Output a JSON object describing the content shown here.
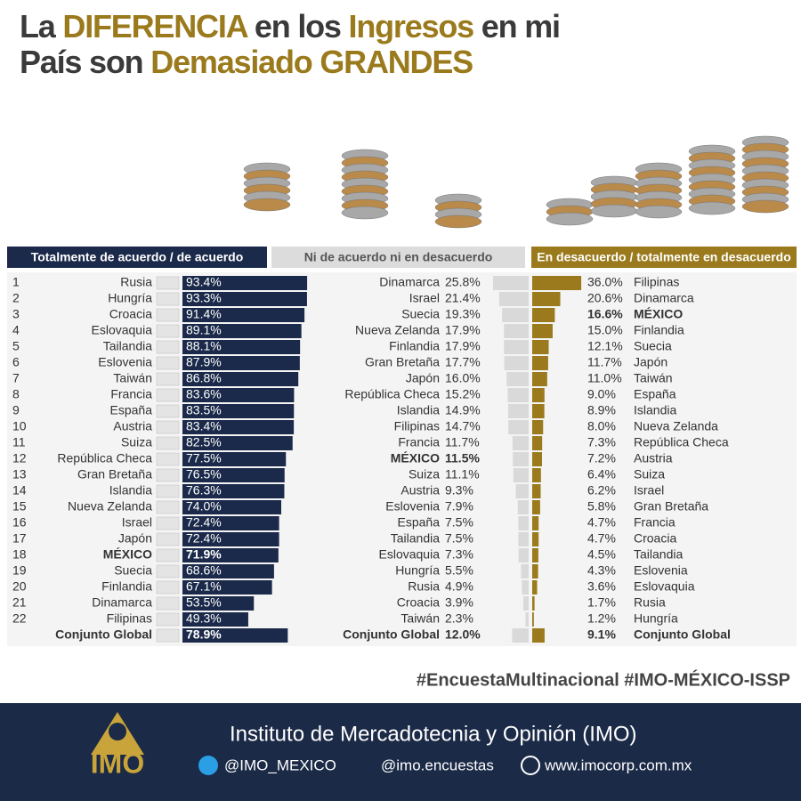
{
  "title": {
    "lines": [
      [
        {
          "text": "La ",
          "color": "#3a3a3a"
        },
        {
          "text": "DIFERENCIA",
          "color": "#9a7a1c"
        },
        {
          "text": " en los ",
          "color": "#3a3a3a"
        },
        {
          "text": "Ingresos",
          "color": "#9a7a1c"
        },
        {
          "text": " en mi",
          "color": "#3a3a3a"
        }
      ],
      [
        {
          "text": "País son ",
          "color": "#3a3a3a"
        },
        {
          "text": "Demasiado GRANDES",
          "color": "#9a7a1c"
        }
      ]
    ]
  },
  "chart_data": [
    {
      "type": "bar",
      "title": "Totalmente de acuerdo / de acuerdo",
      "color": "#1b2a4a",
      "header_color": "#1b2a4a",
      "header_text_color": "#ffffff",
      "emphasis_color": "#1b2a4a",
      "ranks": [
        1,
        2,
        3,
        4,
        5,
        6,
        7,
        8,
        9,
        10,
        11,
        12,
        13,
        14,
        15,
        16,
        17,
        18,
        19,
        20,
        21,
        22,
        null
      ],
      "categories": [
        "Rusia",
        "Hungría",
        "Croacia",
        "Eslovaquia",
        "Tailandia",
        "Eslovenia",
        "Taiwán",
        "Francia",
        "España",
        "Austria",
        "Suiza",
        "República Checa",
        "Gran Bretaña",
        "Islandia",
        "Nueva Zelanda",
        "Israel",
        "Japón",
        "MÉXICO",
        "Suecia",
        "Finlandia",
        "Dinamarca",
        "Filipinas",
        "Conjunto Global"
      ],
      "values": [
        93.4,
        93.3,
        91.4,
        89.1,
        88.1,
        87.9,
        86.8,
        83.6,
        83.5,
        83.4,
        82.5,
        77.5,
        76.5,
        76.3,
        74.0,
        72.4,
        72.4,
        71.9,
        68.6,
        67.1,
        53.5,
        49.3,
        78.9
      ],
      "value_labels": [
        "93.4%",
        "93.3%",
        "91.4%",
        "89.1%",
        "88.1%",
        "87.9%",
        "86.8%",
        "83.6%",
        "83.5%",
        "83.4%",
        "82.5%",
        "77.5%",
        "76.5%",
        "76.3%",
        "74.0%",
        "72.4%",
        "72.4%",
        "71.9%",
        "68.6%",
        "67.1%",
        "53.5%",
        "49.3%",
        "78.9%"
      ],
      "emphasis": [
        false,
        false,
        false,
        false,
        false,
        false,
        false,
        false,
        false,
        false,
        false,
        false,
        false,
        false,
        false,
        false,
        false,
        true,
        false,
        false,
        false,
        false,
        true
      ]
    },
    {
      "type": "bar",
      "title": "Ni de acuerdo ni en desacuerdo",
      "color": "#d9d9d9",
      "header_color": "#dcdcdc",
      "header_text_color": "#555555",
      "emphasis_color": "#222222",
      "categories": [
        "Dinamarca",
        "Israel",
        "Suecia",
        "Nueva Zelanda",
        "Finlandia",
        "Gran Bretaña",
        "Japón",
        "República Checa",
        "Islandia",
        "Filipinas",
        "Francia",
        "MÉXICO",
        "Suiza",
        "Austria",
        "Eslovenia",
        "España",
        "Tailandia",
        "Eslovaquia",
        "Hungría",
        "Rusia",
        "Croacia",
        "Taiwán",
        "Conjunto Global"
      ],
      "values": [
        25.8,
        21.4,
        19.3,
        17.9,
        17.9,
        17.7,
        16.0,
        15.2,
        14.9,
        14.7,
        11.7,
        11.5,
        11.1,
        9.3,
        7.9,
        7.5,
        7.5,
        7.3,
        5.5,
        4.9,
        3.9,
        2.3,
        12.0
      ],
      "value_labels": [
        "25.8%",
        "21.4%",
        "19.3%",
        "17.9%",
        "17.9%",
        "17.7%",
        "16.0%",
        "15.2%",
        "14.9%",
        "14.7%",
        "11.7%",
        "11.5%",
        "11.1%",
        "9.3%",
        "7.9%",
        "7.5%",
        "7.5%",
        "7.3%",
        "5.5%",
        "4.9%",
        "3.9%",
        "2.3%",
        "12.0%"
      ],
      "emphasis": [
        false,
        false,
        false,
        false,
        false,
        false,
        false,
        false,
        false,
        false,
        false,
        true,
        false,
        false,
        false,
        false,
        false,
        false,
        false,
        false,
        false,
        false,
        true
      ]
    },
    {
      "type": "bar",
      "title": "En desacuerdo / totalmente en desacuerdo",
      "color": "#9a7a1c",
      "header_color": "#9a7a1c",
      "header_text_color": "#ffffff",
      "emphasis_color": "#9a7a1c",
      "categories": [
        "Filipinas",
        "Dinamarca",
        "MÉXICO",
        "Finlandia",
        "Suecia",
        "Japón",
        "Taiwán",
        "España",
        "Islandia",
        "Nueva Zelanda",
        "República Checa",
        "Austria",
        "Suiza",
        "Israel",
        "Gran Bretaña",
        "Francia",
        "Croacia",
        "Tailandia",
        "Eslovenia",
        "Eslovaquia",
        "Rusia",
        "Hungría",
        "Conjunto Global"
      ],
      "values": [
        36.0,
        20.6,
        16.6,
        15.0,
        12.1,
        11.7,
        11.0,
        9.0,
        8.9,
        8.0,
        7.3,
        7.2,
        6.4,
        6.2,
        5.8,
        4.7,
        4.7,
        4.5,
        4.3,
        3.6,
        1.7,
        1.2,
        9.1
      ],
      "value_labels": [
        "36.0%",
        "20.6%",
        "16.6%",
        "15.0%",
        "12.1%",
        "11.7%",
        "11.0%",
        "9.0%",
        "8.9%",
        "8.0%",
        "7.3%",
        "7.2%",
        "6.4%",
        "6.2%",
        "5.8%",
        "4.7%",
        "4.7%",
        "4.5%",
        "4.3%",
        "3.6%",
        "1.7%",
        "1.2%",
        "9.1%"
      ],
      "emphasis": [
        false,
        false,
        true,
        false,
        false,
        false,
        false,
        false,
        false,
        false,
        false,
        false,
        false,
        false,
        false,
        false,
        false,
        false,
        false,
        false,
        false,
        false,
        true
      ]
    }
  ],
  "footer": {
    "hashtags": "#EncuestaMultinacional #IMO-MÉXICO-ISSP",
    "logo": "IMO",
    "org": "Instituto de Mercadotecnia y Opinión (IMO)",
    "twitter": "@IMO_MEXICO",
    "instagram": "@imo.encuestas",
    "web": "www.imocorp.com.mx"
  }
}
